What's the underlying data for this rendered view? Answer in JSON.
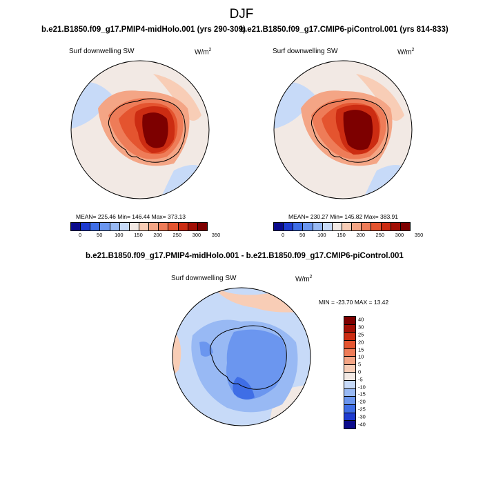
{
  "title": "DJF",
  "panels": [
    {
      "subtitle": "b.e21.B1850.f09_g17.PMIP4-midHolo.001 (yrs 290-309)",
      "variable": "Surf downwelling SW",
      "units": "W/m",
      "units_exp": "2",
      "stats": "MEAN= 225.46  Min= 146.44  Max= 373.13"
    },
    {
      "subtitle": "b.e21.B1850.f09_g17.CMIP6-piControl.001 (yrs 814-833)",
      "variable": "Surf downwelling SW",
      "units": "W/m",
      "units_exp": "2",
      "stats": "MEAN= 230.27  Min= 145.82  Max= 383.91"
    }
  ],
  "diff_panel": {
    "subtitle": "b.e21.B1850.f09_g17.PMIP4-midHolo.001 - b.e21.B1850.f09_g17.CMIP6-piControl.001",
    "variable": "Surf downwelling SW",
    "units": "W/m",
    "units_exp": "2",
    "stats": "MIN = -23.70  MAX =  13.42"
  },
  "colorbar_abs": {
    "colors": [
      "#0b0b8c",
      "#1e3bd0",
      "#3f6ee6",
      "#6b96ef",
      "#98b9f4",
      "#c7daf8",
      "#f2e9e4",
      "#f8cdb6",
      "#f4a585",
      "#ee7c58",
      "#e4542f",
      "#cc2c12",
      "#a20f05",
      "#7d0000"
    ],
    "ticks": [
      "0",
      "50",
      "100",
      "150",
      "200",
      "250",
      "300",
      "350"
    ]
  },
  "colorbar_diff": {
    "colors": [
      "#7d0000",
      "#a20f05",
      "#cc2c12",
      "#e4542f",
      "#ee7c58",
      "#f4a585",
      "#f8cdb6",
      "#f2e9e4",
      "#c7daf8",
      "#98b9f4",
      "#6b96ef",
      "#3f6ee6",
      "#1e3bd0",
      "#0b0b8c"
    ],
    "ticks": [
      "40",
      "30",
      "25",
      "20",
      "15",
      "10",
      "5",
      "0",
      "-5",
      "-10",
      "-15",
      "-20",
      "-25",
      "-30",
      "-40"
    ]
  }
}
